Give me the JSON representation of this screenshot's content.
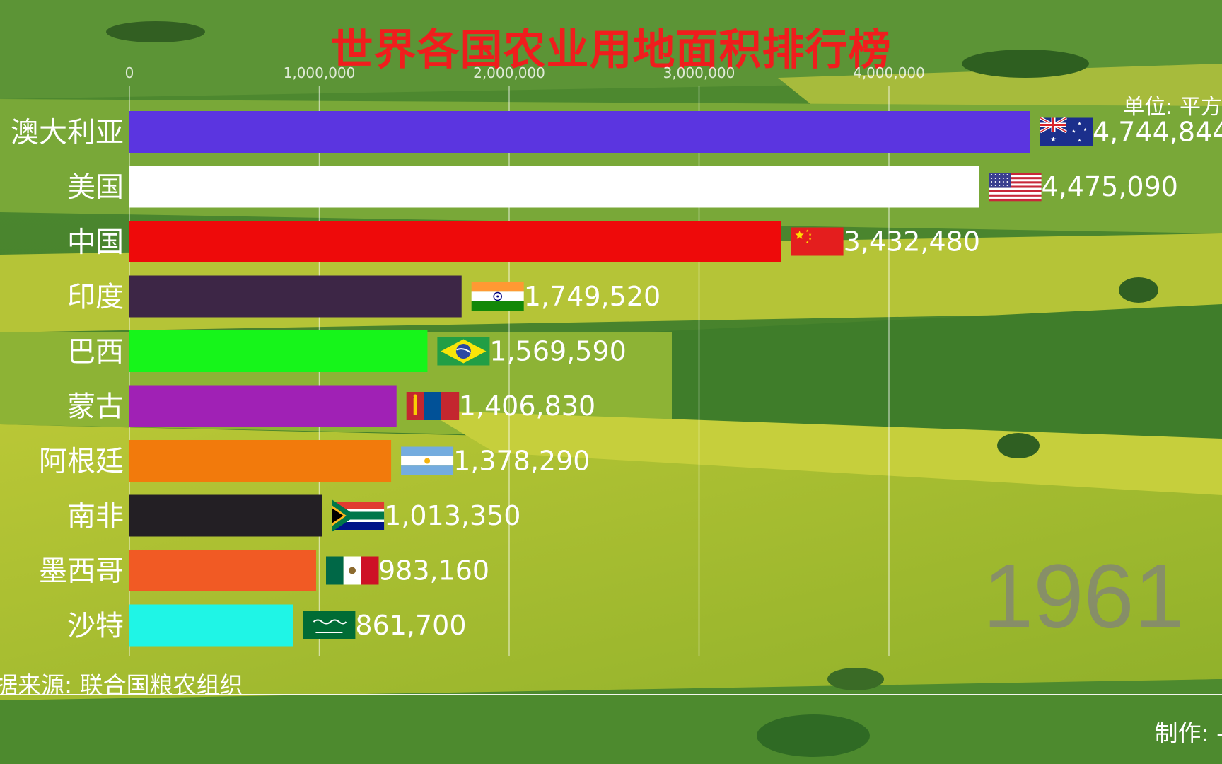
{
  "chart_data": {
    "type": "bar",
    "orientation": "horizontal",
    "title": "世界各国农业用地面积排行榜",
    "unit_label": "单位: 平方",
    "source_label": "据来源: 联合国粮农组织",
    "maker_label": "制作: -",
    "year": "1961",
    "xlim": [
      0,
      5000000
    ],
    "x_ticks": [
      0,
      1000000,
      2000000,
      3000000,
      4000000
    ],
    "x_tick_labels": [
      "0",
      "1,000,000",
      "2,000,000",
      "3,000,000",
      "4,000,000"
    ],
    "grid": true,
    "categories": [
      "澳大利亚",
      "美国",
      "中国",
      "印度",
      "巴西",
      "蒙古",
      "阿根廷",
      "南非",
      "墨西哥",
      "沙特"
    ],
    "values": [
      4744844,
      4475090,
      3432480,
      1749520,
      1569590,
      1406830,
      1378290,
      1013350,
      983160,
      861700
    ],
    "value_labels": [
      "4,744,844",
      "4,475,090",
      "3,432,480",
      "1,749,520",
      "1,569,590",
      "1,406,830",
      "1,378,290",
      "1,013,350",
      "983,160",
      "861,700"
    ],
    "colors": [
      "#5b35e0",
      "#ffffff",
      "#ee0a0a",
      "#3d2646",
      "#16f51a",
      "#a021b5",
      "#f27a0c",
      "#231f24",
      "#f15a24",
      "#1ff5e6"
    ],
    "flags": [
      "australia-flag",
      "usa-flag",
      "china-flag",
      "india-flag",
      "brazil-flag",
      "mongolia-flag",
      "argentina-flag",
      "south-africa-flag",
      "mexico-flag",
      "saudi-arabia-flag"
    ]
  }
}
